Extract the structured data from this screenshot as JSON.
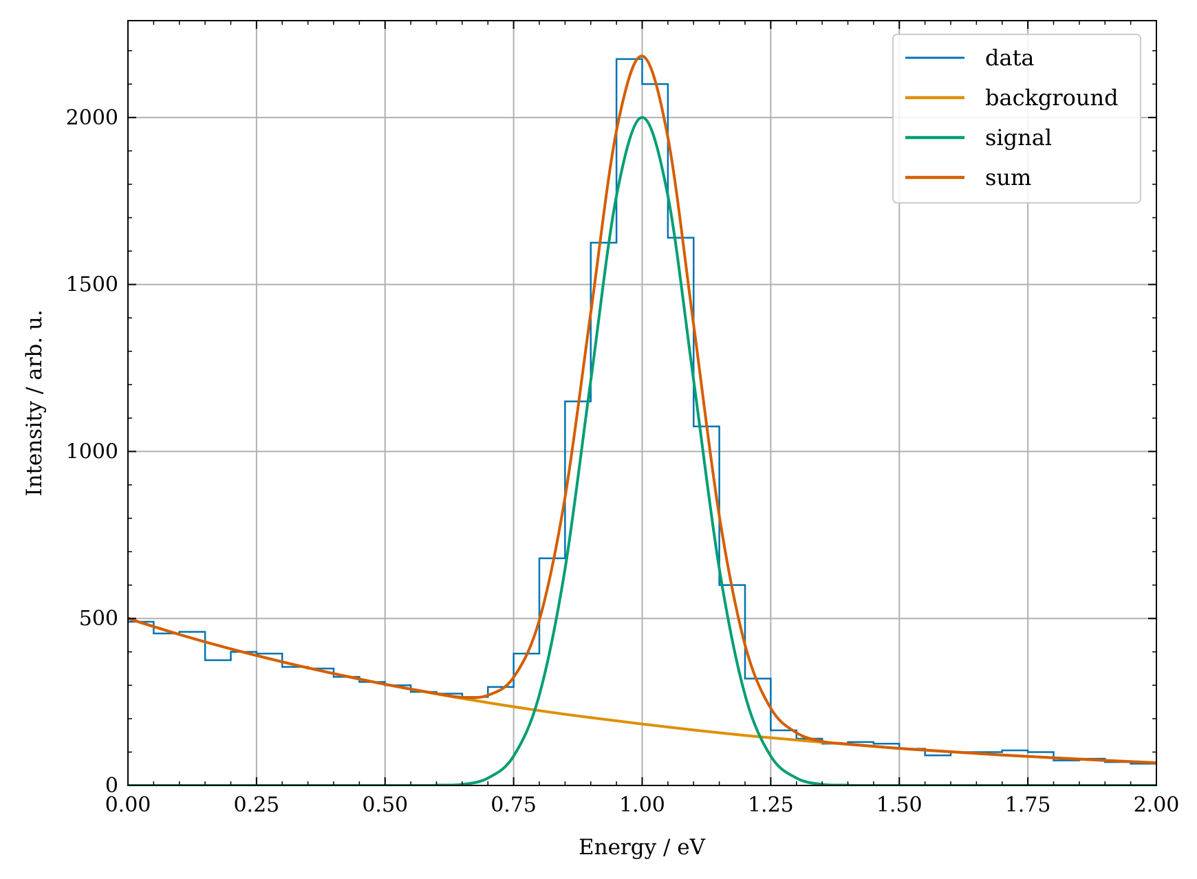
{
  "chart_data": {
    "type": "line",
    "title": "",
    "xlabel": "Energy  / eV",
    "ylabel": "Intensity  / arb. u.",
    "xlim": [
      0.0,
      2.0
    ],
    "ylim": [
      0,
      2290
    ],
    "grid": true,
    "legend_position": "top-right",
    "x_ticks": [
      0.0,
      0.25,
      0.5,
      0.75,
      1.0,
      1.25,
      1.5,
      1.75,
      2.0
    ],
    "x_tick_labels": [
      "0.00",
      "0.25",
      "0.50",
      "0.75",
      "1.00",
      "1.25",
      "1.50",
      "1.75",
      "2.00"
    ],
    "y_ticks": [
      0,
      500,
      1000,
      1500,
      2000
    ],
    "y_tick_labels": [
      "0",
      "500",
      "1000",
      "1500",
      "2000"
    ],
    "series": [
      {
        "name": "data",
        "kind": "step-histogram",
        "color": "#0173b2",
        "bin_edges": [
          0.0,
          0.05,
          0.1,
          0.15,
          0.2,
          0.25,
          0.3,
          0.35,
          0.4,
          0.45,
          0.5,
          0.55,
          0.6,
          0.65,
          0.7,
          0.75,
          0.8,
          0.85,
          0.9,
          0.95,
          1.0,
          1.05,
          1.1,
          1.15,
          1.2,
          1.25,
          1.3,
          1.35,
          1.4,
          1.45,
          1.5,
          1.55,
          1.6,
          1.65,
          1.7,
          1.75,
          1.8,
          1.85,
          1.9,
          1.95,
          2.0
        ],
        "values": [
          490,
          455,
          460,
          375,
          400,
          395,
          355,
          350,
          325,
          310,
          300,
          280,
          275,
          265,
          295,
          395,
          680,
          1150,
          1625,
          2175,
          2100,
          1640,
          1075,
          600,
          320,
          165,
          140,
          125,
          130,
          125,
          110,
          90,
          100,
          100,
          105,
          100,
          75,
          80,
          70,
          65
        ]
      },
      {
        "name": "background",
        "kind": "curve",
        "color": "#de8f05",
        "x": [
          0.0,
          0.1,
          0.2,
          0.3,
          0.4,
          0.5,
          0.6,
          0.7,
          0.8,
          0.9,
          1.0,
          1.1,
          1.2,
          1.3,
          1.4,
          1.5,
          1.6,
          1.7,
          1.8,
          1.9,
          2.0
        ],
        "y": [
          500,
          452,
          409,
          370,
          335,
          303,
          274,
          248,
          224,
          203,
          184,
          166,
          150,
          136,
          123,
          111,
          101,
          91,
          83,
          75,
          68
        ]
      },
      {
        "name": "signal",
        "kind": "curve",
        "color": "#029e73",
        "x": [
          0.0,
          0.55,
          0.6,
          0.65,
          0.7,
          0.75,
          0.8,
          0.85,
          0.9,
          0.95,
          1.0,
          1.05,
          1.1,
          1.15,
          1.2,
          1.25,
          1.3,
          1.35,
          1.4,
          1.45,
          2.0
        ],
        "y": [
          0,
          0,
          1,
          3,
          22,
          88,
          271,
          649,
          1213,
          1765,
          2000,
          1765,
          1213,
          649,
          271,
          88,
          22,
          3,
          1,
          0,
          0
        ]
      },
      {
        "name": "sum",
        "kind": "curve",
        "color": "#d55e00",
        "x": [
          0.0,
          0.1,
          0.2,
          0.3,
          0.4,
          0.5,
          0.6,
          0.65,
          0.7,
          0.75,
          0.8,
          0.85,
          0.9,
          0.95,
          1.0,
          1.05,
          1.1,
          1.15,
          1.2,
          1.25,
          1.3,
          1.35,
          1.4,
          1.5,
          1.6,
          1.7,
          1.8,
          1.9,
          2.0
        ],
        "y": [
          500,
          452,
          409,
          370,
          335,
          303,
          275,
          264,
          270,
          324,
          495,
          863,
          1416,
          1960,
          2184,
          1940,
          1379,
          807,
          421,
          231,
          158,
          132,
          124,
          111,
          101,
          91,
          83,
          75,
          68
        ]
      }
    ]
  }
}
